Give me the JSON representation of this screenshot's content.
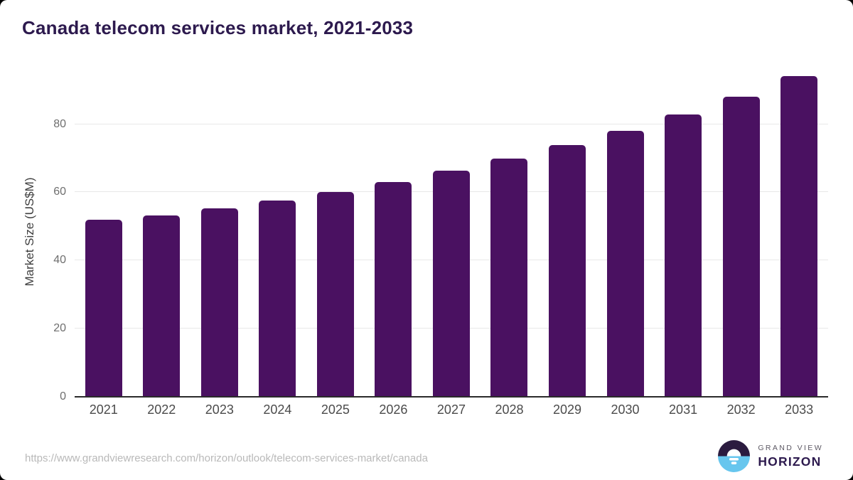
{
  "title": "Canada telecom services market, 2021-2033",
  "footer": {
    "source_url": "https://www.grandviewresearch.com/horizon/outlook/telecom-services-market/canada"
  },
  "logo": {
    "name": "grand-view-horizon-logo",
    "line1": "GRAND VIEW",
    "line2": "HORIZON"
  },
  "colors": {
    "bar": "#4a1161",
    "title": "#2d1a4e",
    "grid": "#e8e8e8",
    "axis": "#2b2b2b",
    "logo_top": "#2b1b3f",
    "logo_bottom": "#67c6ee"
  },
  "chart_data": {
    "type": "bar",
    "title": "Canada telecom services market, 2021-2033",
    "categories": [
      "2021",
      "2022",
      "2023",
      "2024",
      "2025",
      "2026",
      "2027",
      "2028",
      "2029",
      "2030",
      "2031",
      "2032",
      "2033"
    ],
    "values": [
      51.9,
      53.3,
      55.2,
      57.6,
      60.1,
      63.0,
      66.3,
      69.8,
      73.8,
      78.0,
      82.8,
      88.1,
      94.1
    ],
    "xlabel": "",
    "ylabel": "Market Size (US$M)",
    "y_ticks": [
      0,
      20,
      40,
      60,
      80
    ],
    "ylim": [
      0,
      96.6
    ],
    "grid": "horizontal",
    "legend": false
  }
}
